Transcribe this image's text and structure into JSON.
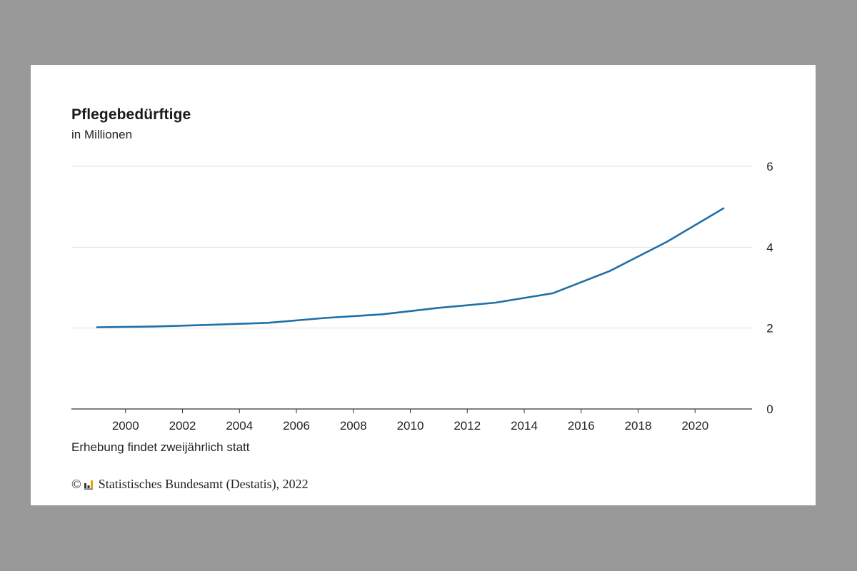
{
  "chart_data": {
    "type": "line",
    "title": "Pflegebedürftige",
    "subtitle": "in Millionen",
    "xlabel": "",
    "ylabel": "",
    "note": "Erhebung findet zweijährlich statt",
    "x": [
      1999,
      2001,
      2003,
      2005,
      2007,
      2009,
      2011,
      2013,
      2015,
      2017,
      2019,
      2021
    ],
    "series": [
      {
        "values": [
          2.02,
          2.04,
          2.08,
          2.13,
          2.25,
          2.34,
          2.5,
          2.63,
          2.86,
          3.41,
          4.13,
          4.96
        ]
      }
    ],
    "xlim": [
      1998.1,
      2022
    ],
    "ylim": [
      0,
      6
    ],
    "xticks": [
      2000,
      2002,
      2004,
      2006,
      2008,
      2010,
      2012,
      2014,
      2016,
      2018,
      2020
    ],
    "yticks": [
      0,
      2,
      4,
      6
    ],
    "y_axis_side": "right",
    "grid": true,
    "line_color": "#1f6fa8",
    "grid_color": "#e2e2e2",
    "axis_color": "#333333"
  },
  "source": {
    "copyright_symbol": "©",
    "logo_icon": "destatis-logo-icon",
    "text": "Statistisches Bundesamt (Destatis), 2022"
  }
}
